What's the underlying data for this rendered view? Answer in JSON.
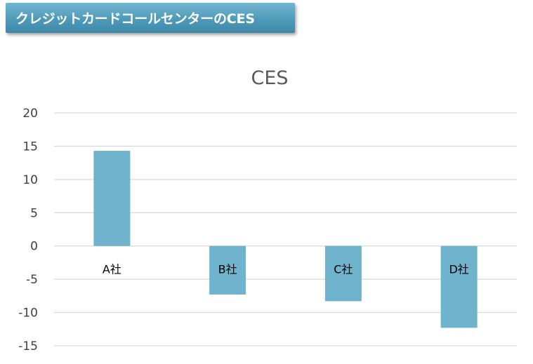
{
  "header": {
    "title": "クレジットカードコールセンターのCES"
  },
  "colors": {
    "bar": "#6fb3cc",
    "gridline": "#d9d9d9",
    "banner": "#4f9ab8"
  },
  "chart_data": {
    "type": "bar",
    "title": "CES",
    "xlabel": "",
    "ylabel": "",
    "categories": [
      "A社",
      "B社",
      "C社",
      "D社"
    ],
    "values": [
      14.3,
      -7.3,
      -8.3,
      -12.3
    ],
    "ylim": [
      -15,
      20
    ],
    "yticks": [
      20,
      15,
      10,
      5,
      0,
      -5,
      -10,
      -15
    ],
    "grid": true,
    "legend": "none"
  }
}
